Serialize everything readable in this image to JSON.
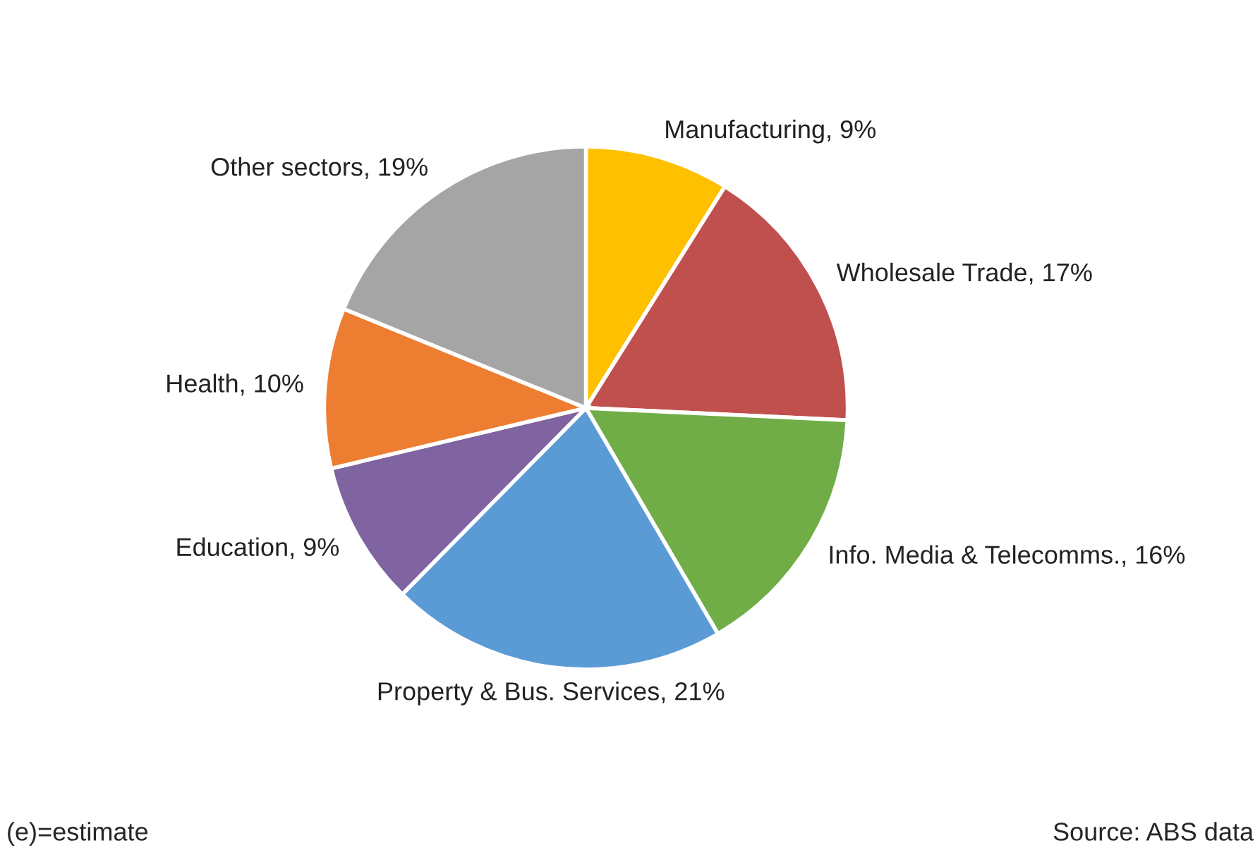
{
  "chart_data": {
    "type": "pie",
    "categories": [
      "Manufacturing",
      "Wholesale Trade",
      "Info. Media & Telecomms.",
      "Property & Bus. Services",
      "Education",
      "Health",
      "Other sectors"
    ],
    "values": [
      9,
      17,
      16,
      21,
      9,
      10,
      19
    ],
    "value_labels": [
      "9%",
      "17%",
      "16%",
      "21%",
      "9%",
      "10%",
      "19%"
    ],
    "colors": [
      "#ffc000",
      "#c0504d",
      "#70ad47",
      "#5b9bd5",
      "#8064a2",
      "#ed7d31",
      "#a5a5a5"
    ],
    "annotations": [
      "(e)=estimate",
      "Source: ABS data"
    ],
    "legend": false
  }
}
